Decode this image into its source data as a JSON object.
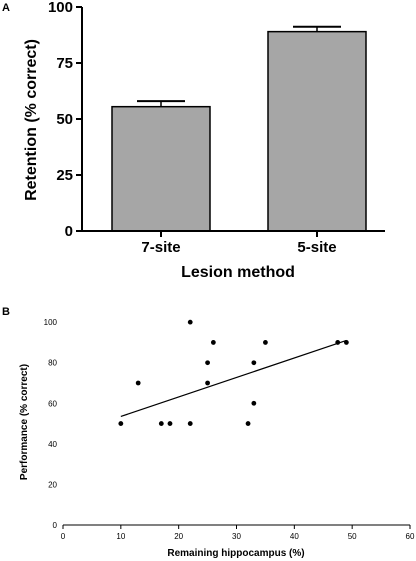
{
  "chart_data": [
    {
      "type": "bar",
      "panel_label": "A",
      "categories": [
        "7-site",
        "5-site"
      ],
      "values": [
        55.5,
        89
      ],
      "error": [
        2.5,
        2.2
      ],
      "xlabel": "Lesion method",
      "ylabel": "Retention (% correct)",
      "ylim": [
        0,
        100
      ],
      "yticks": [
        "0",
        "25",
        "50",
        "75",
        "100"
      ],
      "bar_color": "#a6a6a6",
      "grid": false
    },
    {
      "type": "scatter",
      "panel_label": "B",
      "points": [
        {
          "x": 10,
          "y": 50
        },
        {
          "x": 13,
          "y": 70
        },
        {
          "x": 17,
          "y": 50
        },
        {
          "x": 18.5,
          "y": 50
        },
        {
          "x": 22,
          "y": 100
        },
        {
          "x": 22,
          "y": 50
        },
        {
          "x": 25,
          "y": 80
        },
        {
          "x": 25,
          "y": 70
        },
        {
          "x": 26,
          "y": 90
        },
        {
          "x": 32,
          "y": 50
        },
        {
          "x": 33,
          "y": 80
        },
        {
          "x": 33,
          "y": 60
        },
        {
          "x": 35,
          "y": 90
        },
        {
          "x": 47.5,
          "y": 90
        },
        {
          "x": 49,
          "y": 90
        }
      ],
      "fit_line": {
        "x": [
          10,
          49
        ],
        "y": [
          53.5,
          91
        ]
      },
      "xlabel": "Remaining hippocampus (%)",
      "ylabel": "Performance (% correct)",
      "xlim": [
        0,
        60
      ],
      "ylim": [
        0,
        105
      ],
      "xticks": [
        "0",
        "10",
        "20",
        "30",
        "40",
        "50",
        "60"
      ],
      "yticks": [
        "0",
        "20",
        "40",
        "60",
        "80",
        "100"
      ],
      "grid": false
    }
  ]
}
